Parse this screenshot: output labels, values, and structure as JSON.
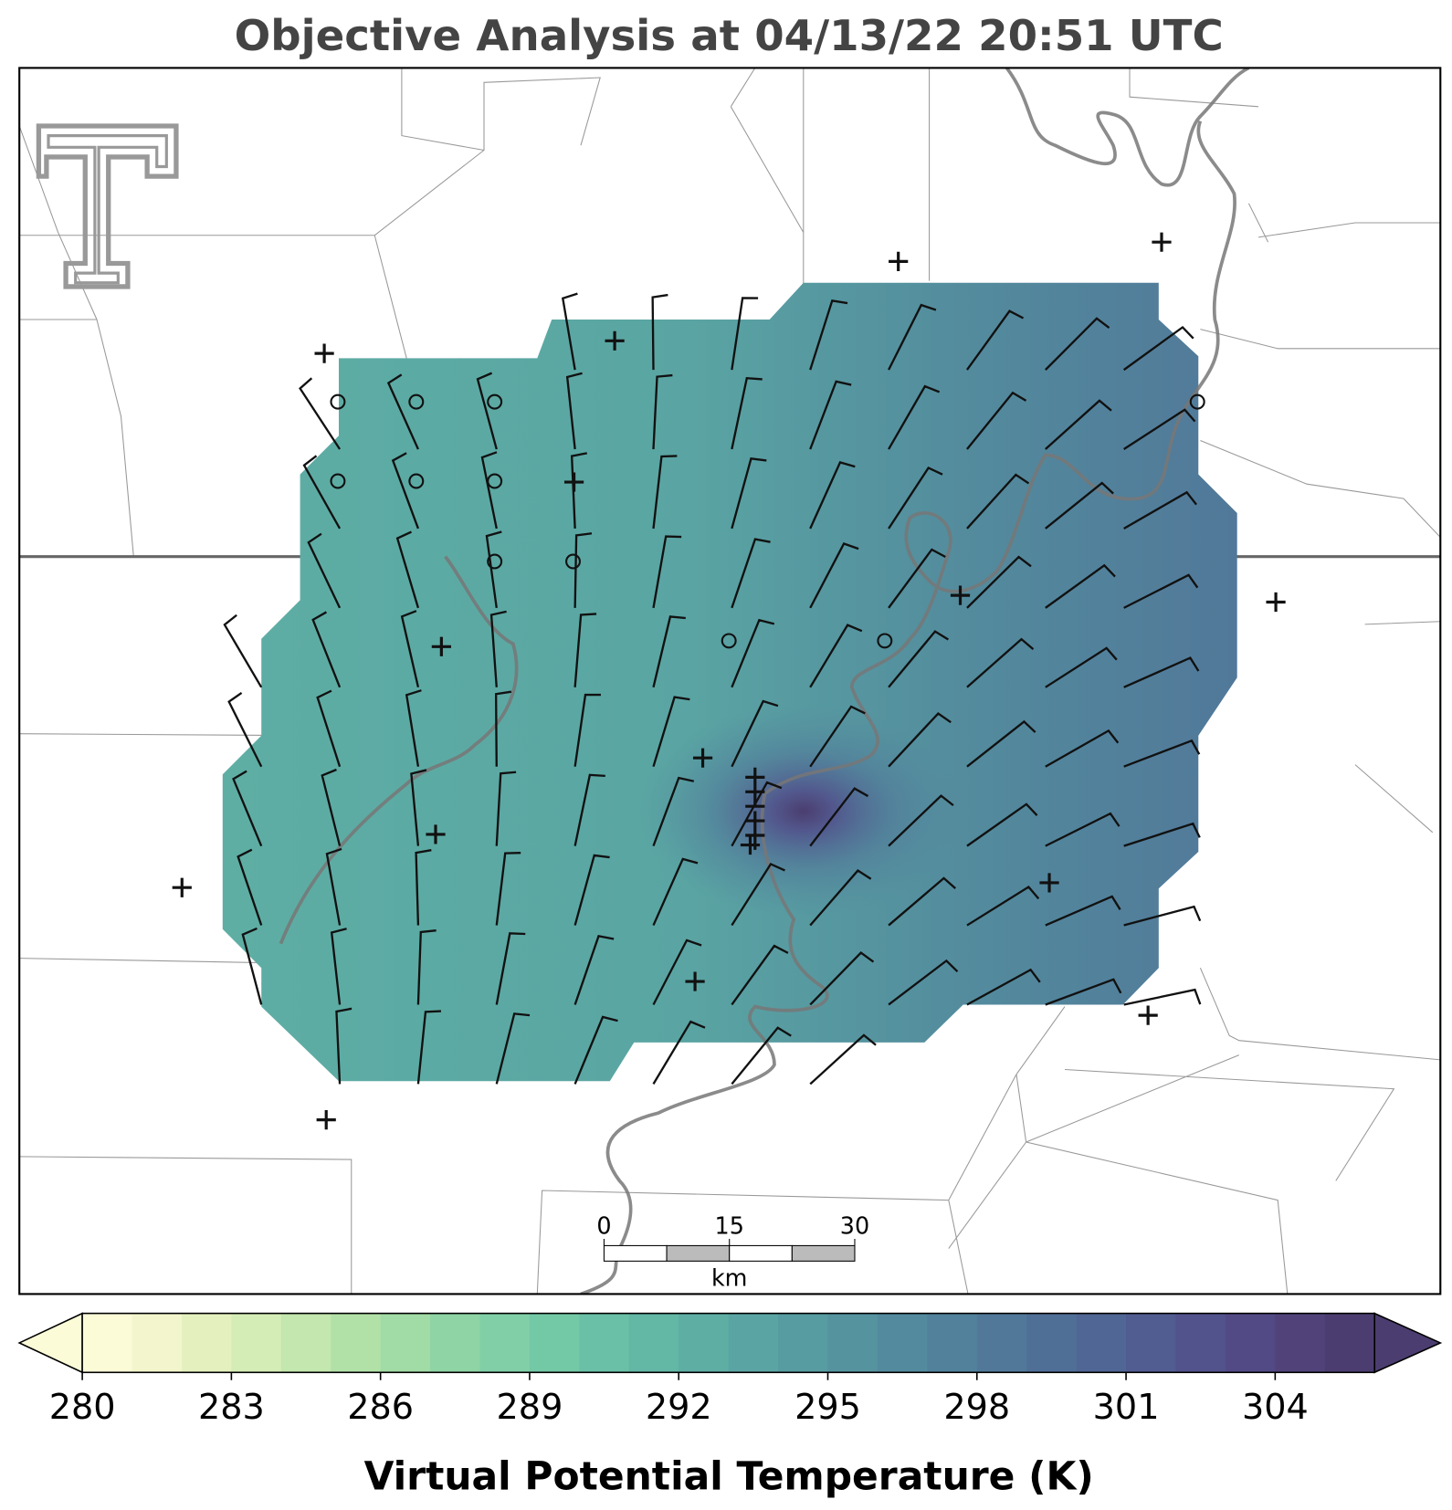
{
  "title": "Objective Analysis at 04/13/22 20:51 UTC",
  "colorbar": {
    "label": "Virtual Potential Temperature (K)",
    "range": [
      280,
      306
    ],
    "ticks": [
      280,
      283,
      286,
      289,
      292,
      295,
      298,
      301,
      304
    ],
    "colors": [
      "#fbfbd8",
      "#f3f6cc",
      "#e4f1bf",
      "#d4edb6",
      "#c3e7ae",
      "#b2e1a8",
      "#a1dba5",
      "#8fd4a4",
      "#80cfa6",
      "#73c8a6",
      "#69c0a6",
      "#62b7a5",
      "#5eaea4",
      "#5aa5a3",
      "#579ca1",
      "#55939f",
      "#538a9d",
      "#52819b",
      "#517899",
      "#506f97",
      "#506694",
      "#515c91",
      "#52528c",
      "#524a84",
      "#51437a",
      "#4b3d6f"
    ]
  },
  "scale_bar": {
    "ticks": [
      0,
      15,
      30
    ],
    "unit": "km"
  }
}
